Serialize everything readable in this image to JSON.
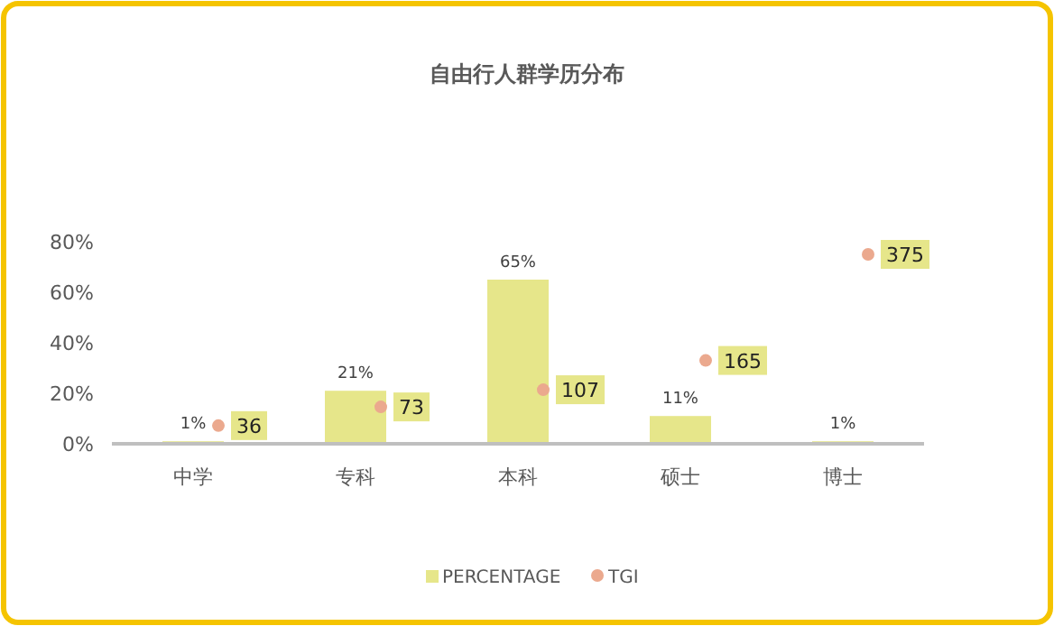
{
  "chart_data": {
    "type": "bar",
    "title": "自由行人群学历分布",
    "categories": [
      "中学",
      "专科",
      "本科",
      "硕士",
      "博士"
    ],
    "series": [
      {
        "name": "PERCENTAGE",
        "color": "#e6e68a",
        "values": [
          1,
          21,
          65,
          11,
          1
        ],
        "value_labels": [
          "1%",
          "21%",
          "65%",
          "11%",
          "1%"
        ]
      },
      {
        "name": "TGI",
        "type": "scatter",
        "axis": "y2",
        "color": "#eba98e",
        "values": [
          36,
          73,
          107,
          165,
          375
        ],
        "value_labels": [
          "36",
          "73",
          "107",
          "165",
          "375"
        ]
      }
    ],
    "ylim": [
      0,
      80
    ],
    "yticks": [
      {
        "value": 0,
        "label": "0%"
      },
      {
        "value": 20,
        "label": "20%"
      },
      {
        "value": 40,
        "label": "40%"
      },
      {
        "value": 60,
        "label": "60%"
      },
      {
        "value": 80,
        "label": "80%"
      }
    ],
    "y2lim": [
      0,
      400
    ],
    "grid": false,
    "legend": "bottom",
    "marker": "circle"
  }
}
